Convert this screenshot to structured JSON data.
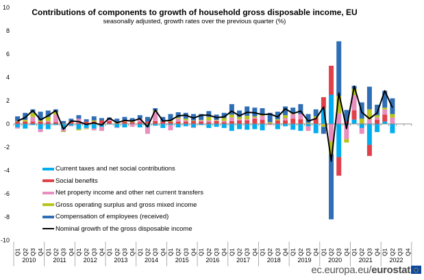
{
  "chart_data": {
    "type": "bar",
    "stacked": true,
    "title": "Contributions of components to growth of household gross disposable income, EU",
    "subtitle": "seasonally adjusted, growth rates over the previous quarter (%)",
    "ylim": [
      -10,
      10
    ],
    "yticks": [
      10,
      8,
      6,
      4,
      2,
      0,
      -2,
      -4,
      -6,
      -8,
      -10
    ],
    "grid": false,
    "legend_position": "bottom-left inside plot",
    "years": [
      "2010",
      "2011",
      "2012",
      "2013",
      "2014",
      "2015",
      "2016",
      "2017",
      "2018",
      "2019",
      "2020",
      "2021",
      "2022"
    ],
    "quarter_labels": [
      "Q1",
      "Q2",
      "Q3",
      "Q4"
    ],
    "series": [
      {
        "name": "Current taxes and net social contributions",
        "color": "#00aeef",
        "kind": "bar",
        "values": [
          -0.3,
          -0.4,
          -0.1,
          -0.45,
          -0.45,
          -0.1,
          -0.45,
          -0.15,
          -0.45,
          -0.35,
          -0.4,
          -0.25,
          -0.05,
          -0.3,
          -0.3,
          0,
          -0.3,
          -0.3,
          -0.15,
          -0.35,
          -0.1,
          -0.3,
          -0.2,
          -0.3,
          -0.1,
          -0.35,
          -0.25,
          -0.35,
          -0.6,
          -0.45,
          -0.5,
          -0.45,
          -0.55,
          0,
          -0.45,
          -0.2,
          -0.5,
          -0.6,
          -0.2,
          -0.8,
          1.3,
          2.5,
          -2.85,
          -0.1,
          0.37,
          -0.35,
          -1.8,
          -0.7,
          0.2,
          -0.8
        ]
      },
      {
        "name": "Social benefits",
        "color": "#e0404a",
        "kind": "bar",
        "values": [
          0.2,
          0.2,
          0.2,
          0.2,
          0.15,
          0.15,
          0.05,
          0.2,
          0.1,
          0.2,
          0.2,
          0.3,
          0.25,
          0.05,
          0.2,
          0.15,
          0.15,
          0.2,
          0.25,
          0.2,
          0.2,
          0.2,
          0.2,
          0.25,
          0.2,
          0.15,
          0.25,
          0.15,
          0.25,
          0.3,
          0.3,
          0.45,
          0.35,
          0.05,
          0.3,
          0.3,
          0.45,
          0.4,
          0,
          0.5,
          1.0,
          2.5,
          -1.6,
          0.2,
          0.8,
          0.05,
          -0.95,
          0.35,
          0.6,
          0
        ]
      },
      {
        "name": "Net property income and other net current transfers",
        "color": "#e88fc0",
        "kind": "bar",
        "values": [
          -0.1,
          0,
          0.4,
          -0.25,
          0.1,
          0.65,
          -0.2,
          -0.05,
          0.35,
          -0.05,
          -0.15,
          -0.35,
          0.1,
          -0.05,
          0,
          -0.25,
          0.3,
          -0.55,
          0.8,
          0,
          -0.45,
          0.25,
          0.1,
          -0.05,
          0.1,
          0.15,
          0.05,
          0.1,
          0.3,
          0.1,
          0.1,
          0.1,
          0.35,
          -0.1,
          0,
          0.2,
          0.4,
          0.45,
          -0.4,
          0,
          -0.05,
          -1.5,
          0.9,
          -1.2,
          1.3,
          -0.5,
          0.4,
          0.2,
          0.45,
          0.55
        ]
      },
      {
        "name": "Gross operating surplus and gross mixed income",
        "color": "#b8c41c",
        "kind": "bar",
        "values": [
          0.05,
          0.15,
          0.35,
          0.1,
          0.35,
          0.2,
          -0.05,
          0.05,
          -0.1,
          -0.05,
          0.1,
          0,
          0,
          0.1,
          0.1,
          0.05,
          0,
          0,
          0.1,
          0,
          0.1,
          0.1,
          0.15,
          0.05,
          0.05,
          0.3,
          0.05,
          0.25,
          0.25,
          0.2,
          0.3,
          0.1,
          0.1,
          0.1,
          0.1,
          0.25,
          0.1,
          0,
          0.1,
          0.15,
          -0.2,
          -1.1,
          1.5,
          -0.3,
          0.55,
          0.4,
          0.85,
          0.2,
          0.15,
          0.3
        ]
      },
      {
        "name": "Compensation of employees (received)",
        "color": "#2f6eb5",
        "kind": "bar",
        "values": [
          0.4,
          0.6,
          0.3,
          0.75,
          0.55,
          0.25,
          0.2,
          0.2,
          0.3,
          0.2,
          0.35,
          0.2,
          0.2,
          0.3,
          0.3,
          0.3,
          0.3,
          0.4,
          0.2,
          0.4,
          0.55,
          0.45,
          0.5,
          0.55,
          0.5,
          0.5,
          0.45,
          0.45,
          0.9,
          0.55,
          0.8,
          0.75,
          0.55,
          0.8,
          0.65,
          0.75,
          0.45,
          0.85,
          0.75,
          0.6,
          -0.6,
          -5.6,
          4.7,
          1.0,
          0.25,
          1.4,
          1.95,
          0.9,
          1.45,
          1.35
        ]
      },
      {
        "name": "Nominal growth of the gross disposable income",
        "color": "#000000",
        "kind": "line",
        "values": [
          0.25,
          0.55,
          1.15,
          0.35,
          0.7,
          1.15,
          -0.45,
          0.25,
          0.2,
          -0.05,
          0.1,
          -0.1,
          0.5,
          0.1,
          0.3,
          0.25,
          0.45,
          -0.25,
          1.2,
          0.25,
          0.3,
          0.7,
          0.75,
          0.5,
          0.75,
          0.75,
          0.55,
          0.6,
          1.1,
          0.7,
          1.0,
          0.95,
          0.8,
          0.85,
          0.6,
          1.3,
          0.9,
          1.1,
          0.25,
          0.45,
          1.45,
          -3.2,
          2.65,
          -0.4,
          3.25,
          1.0,
          0.45,
          0.95,
          2.85,
          1.4
        ]
      }
    ]
  },
  "footer": {
    "domain": "ec.europa.eu/",
    "brand": "eurostat"
  }
}
